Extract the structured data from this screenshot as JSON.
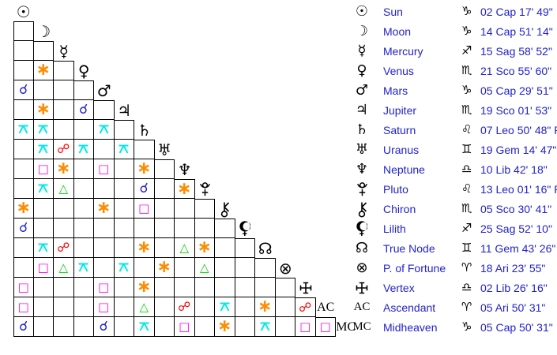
{
  "colors": {
    "table_text": "#2222cc",
    "glyph_black": "#000000",
    "grid_line": "#000000",
    "aspect": {
      "conjunction": "#2222dd",
      "sextile": "#ff8c00",
      "square": "#ff00ff",
      "trine": "#00d400",
      "opposition": "#ff0000",
      "quincunx": "#00e8e8"
    }
  },
  "aspect_types": {
    "conjunction": {
      "symbol": "☌",
      "icon": "conjunction-icon"
    },
    "sextile": {
      "symbol": "∗",
      "icon": "sextile-icon"
    },
    "square": {
      "symbol": "□",
      "icon": "square-icon"
    },
    "trine": {
      "symbol": "△",
      "icon": "trine-icon"
    },
    "opposition": {
      "symbol": "☍",
      "icon": "opposition-icon"
    },
    "quincunx": {
      "symbol": "@quincunx",
      "icon": "quincunx-icon"
    }
  },
  "bodies": [
    {
      "name": "Sun",
      "glyph": "☉",
      "sign": "Cap",
      "sign_glyph": "♑",
      "position": "02 Cap 17' 49\"",
      "aspects": []
    },
    {
      "name": "Moon",
      "glyph": "☽",
      "sign": "Cap",
      "sign_glyph": "♑",
      "position": "14 Cap 51' 14\"",
      "aspects": [
        null
      ]
    },
    {
      "name": "Mercury",
      "glyph": "☿",
      "sign": "Sag",
      "sign_glyph": "♐",
      "position": "15 Sag 58' 52\"",
      "aspects": [
        null,
        null
      ]
    },
    {
      "name": "Venus",
      "glyph": "♀",
      "sign": "Sco",
      "sign_glyph": "♏",
      "position": "21 Sco 55' 60\"",
      "aspects": [
        null,
        "sextile",
        null
      ]
    },
    {
      "name": "Mars",
      "glyph": "♂",
      "sign": "Cap",
      "sign_glyph": "♑",
      "position": "05 Cap 29' 51\"",
      "aspects": [
        "conjunction",
        null,
        null,
        null
      ]
    },
    {
      "name": "Jupiter",
      "glyph": "♃",
      "sign": "Sco",
      "sign_glyph": "♏",
      "position": "19 Sco 01' 53\"",
      "aspects": [
        null,
        "sextile",
        null,
        "conjunction",
        null
      ]
    },
    {
      "name": "Saturn",
      "glyph": "♄",
      "sign": "Leo",
      "sign_glyph": "♌",
      "position": "07 Leo 50' 48\" R",
      "aspects": [
        "quincunx",
        "quincunx",
        null,
        null,
        "quincunx",
        null
      ]
    },
    {
      "name": "Uranus",
      "glyph": "♅",
      "sign": "Gem",
      "sign_glyph": "♊",
      "position": "19 Gem 14' 47\" R",
      "aspects": [
        null,
        "quincunx",
        "opposition",
        "quincunx",
        null,
        "quincunx",
        null
      ]
    },
    {
      "name": "Neptune",
      "glyph": "♆",
      "sign": "Lib",
      "sign_glyph": "♎",
      "position": "10 Lib 42' 18\"",
      "aspects": [
        null,
        "square",
        "sextile",
        null,
        "square",
        null,
        "sextile",
        null
      ]
    },
    {
      "name": "Pluto",
      "glyph": "@pluto",
      "sign": "Leo",
      "sign_glyph": "♌",
      "position": "13 Leo 01' 16\" R",
      "aspects": [
        null,
        "quincunx",
        "trine",
        null,
        null,
        null,
        "conjunction",
        null,
        "sextile"
      ]
    },
    {
      "name": "Chiron",
      "glyph": "@chiron",
      "sign": "Sco",
      "sign_glyph": "♏",
      "position": "05 Sco 30' 41\"",
      "aspects": [
        "sextile",
        null,
        null,
        null,
        "sextile",
        null,
        "square",
        null,
        null,
        null
      ]
    },
    {
      "name": "Lilith",
      "glyph": "@lilith",
      "sign": "Sag",
      "sign_glyph": "♐",
      "position": "25 Sag 52' 10\"",
      "aspects": [
        "conjunction",
        null,
        null,
        null,
        null,
        null,
        null,
        null,
        null,
        null,
        null
      ]
    },
    {
      "name": "True Node",
      "glyph": "☊",
      "sign": "Gem",
      "sign_glyph": "♊",
      "position": "11 Gem 43' 26\" R",
      "aspects": [
        null,
        "quincunx",
        "opposition",
        null,
        null,
        null,
        "sextile",
        null,
        "trine",
        "sextile",
        null,
        null
      ]
    },
    {
      "name": "P. of Fortune",
      "glyph": "⊗",
      "sign": "Ari",
      "sign_glyph": "♈",
      "position": "18 Ari 23' 55\"",
      "aspects": [
        null,
        "square",
        "trine",
        "quincunx",
        null,
        "quincunx",
        null,
        "sextile",
        null,
        "trine",
        null,
        null,
        null
      ]
    },
    {
      "name": "Vertex",
      "glyph": "@vertex",
      "sign": "Lib",
      "sign_glyph": "♎",
      "position": "02 Lib 26' 16\"",
      "aspects": [
        "square",
        null,
        null,
        null,
        "square",
        null,
        "sextile",
        null,
        null,
        null,
        null,
        null,
        null,
        null
      ]
    },
    {
      "name": "Ascendant",
      "glyph": "AC",
      "glyph_is_text": true,
      "sign": "Ari",
      "sign_glyph": "♈",
      "position": "05 Ari 50' 31\"",
      "aspects": [
        "square",
        null,
        null,
        null,
        "square",
        null,
        "trine",
        null,
        "opposition",
        null,
        "quincunx",
        null,
        "sextile",
        null,
        "opposition"
      ]
    },
    {
      "name": "Midheaven",
      "glyph": "MC",
      "glyph_is_text": true,
      "sign": "Cap",
      "sign_glyph": "♑",
      "position": "05 Cap 50' 31\"",
      "aspects": [
        "conjunction",
        null,
        null,
        null,
        "conjunction",
        null,
        "quincunx",
        null,
        "square",
        null,
        "sextile",
        null,
        "quincunx",
        null,
        "square",
        "square"
      ]
    }
  ]
}
